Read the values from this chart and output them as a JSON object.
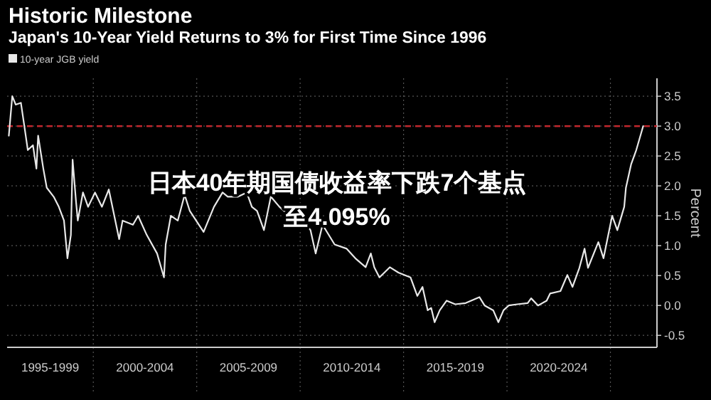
{
  "chart_data": {
    "type": "line",
    "title": "Historic Milestone",
    "subtitle": "Japan's 10-Year Yield Returns to 3% for First Time Since 1996",
    "ylabel": "Percent",
    "annotations": [
      "日本40年期国债收益率下跌7个基点至4.095%"
    ],
    "xlim": [
      "1995-11",
      "2027-04"
    ],
    "ylim": [
      -0.7,
      3.8
    ],
    "xticks": [
      {
        "value": "1997-12",
        "label": "1995-1999"
      },
      {
        "value": "2000-01",
        "label": null
      },
      {
        "value": "2002-07",
        "label": "2000-2004"
      },
      {
        "value": "2005-01",
        "label": null
      },
      {
        "value": "2007-07",
        "label": "2005-2009"
      },
      {
        "value": "2010-01",
        "label": null
      },
      {
        "value": "2012-07",
        "label": "2010-2014"
      },
      {
        "value": "2015-01",
        "label": null
      },
      {
        "value": "2017-07",
        "label": "2015-2019"
      },
      {
        "value": "2020-01",
        "label": null
      },
      {
        "value": "2022-07",
        "label": "2020-2024"
      },
      {
        "value": "2025-01",
        "label": null
      }
    ],
    "yticks": [
      {
        "value": -0.5,
        "label": "-0.5"
      },
      {
        "value": 0,
        "label": "0.0"
      },
      {
        "value": 0.5,
        "label": "0.5"
      },
      {
        "value": 1,
        "label": "1.0"
      },
      {
        "value": 1.5,
        "label": "1.5"
      },
      {
        "value": 2,
        "label": "2.0"
      },
      {
        "value": 2.5,
        "label": "2.5"
      },
      {
        "value": 3,
        "label": "3.0"
      },
      {
        "value": 3.5,
        "label": "3.5"
      }
    ],
    "grid": true,
    "legend": "top left",
    "ref_lines": [
      {
        "axis": "y",
        "value": 3.0,
        "color": "#c0272d",
        "line_style": "dashed"
      }
    ],
    "x": [
      "1995-12",
      "1996-02",
      "1996-04",
      "1996-07",
      "1996-09",
      "1996-11",
      "1997-02",
      "1997-04",
      "1997-05",
      "1997-08",
      "1997-10",
      "1998-02",
      "1998-05",
      "1998-08",
      "1998-10",
      "1998-12",
      "1999-01",
      "1999-03",
      "1999-04",
      "1999-07",
      "1999-10",
      "2000-02",
      "2000-06",
      "2000-10",
      "2001-04",
      "2001-06",
      "2001-12",
      "2002-03",
      "2002-08",
      "2003-02",
      "2003-06",
      "2003-07",
      "2003-10",
      "2004-02",
      "2004-06",
      "2004-09",
      "2005-05",
      "2005-11",
      "2006-04",
      "2006-07",
      "2007-01",
      "2007-06",
      "2007-09",
      "2007-12",
      "2008-04",
      "2008-08",
      "2009-01",
      "2009-10",
      "2010-03",
      "2010-07",
      "2010-10",
      "2011-02",
      "2011-09",
      "2012-04",
      "2012-09",
      "2013-03",
      "2013-06",
      "2013-08",
      "2013-11",
      "2014-05",
      "2014-10",
      "2015-05",
      "2015-09",
      "2015-12",
      "2016-03",
      "2016-05",
      "2016-07",
      "2016-10",
      "2017-02",
      "2017-07",
      "2018-01",
      "2018-09",
      "2018-12",
      "2019-05",
      "2019-08",
      "2019-11",
      "2020-02",
      "2020-07",
      "2021-01",
      "2021-03",
      "2021-07",
      "2021-12",
      "2022-02",
      "2022-08",
      "2022-12",
      "2023-03",
      "2023-07",
      "2023-10",
      "2023-12",
      "2024-06",
      "2024-09",
      "2025-02",
      "2025-05",
      "2025-09",
      "2025-10",
      "2026-01",
      "2026-04",
      "2026-08"
    ],
    "series": [
      {
        "name": "10-year JGB yield",
        "color": "#e8e8e8",
        "values": [
          2.84,
          3.5,
          3.36,
          3.39,
          3.0,
          2.6,
          2.68,
          2.29,
          2.84,
          2.29,
          1.97,
          1.82,
          1.65,
          1.42,
          0.79,
          1.18,
          2.44,
          1.73,
          1.42,
          1.89,
          1.65,
          1.89,
          1.65,
          1.94,
          1.11,
          1.42,
          1.35,
          1.5,
          1.18,
          0.87,
          0.47,
          1.02,
          1.5,
          1.42,
          1.85,
          1.58,
          1.23,
          1.65,
          1.89,
          1.82,
          1.82,
          1.89,
          1.65,
          1.58,
          1.26,
          1.82,
          1.65,
          1.42,
          1.42,
          1.26,
          0.87,
          1.35,
          1.02,
          0.95,
          0.79,
          0.64,
          0.87,
          0.64,
          0.47,
          0.64,
          0.55,
          0.47,
          0.16,
          0.31,
          -0.08,
          -0.04,
          -0.28,
          -0.08,
          0.08,
          0.02,
          0.04,
          0.14,
          0.0,
          -0.08,
          -0.28,
          -0.08,
          0.0,
          0.02,
          0.04,
          0.12,
          0.0,
          0.08,
          0.2,
          0.24,
          0.51,
          0.31,
          0.63,
          0.95,
          0.63,
          1.06,
          0.79,
          1.5,
          1.26,
          1.65,
          1.97,
          2.36,
          2.6,
          3.0
        ]
      }
    ]
  }
}
